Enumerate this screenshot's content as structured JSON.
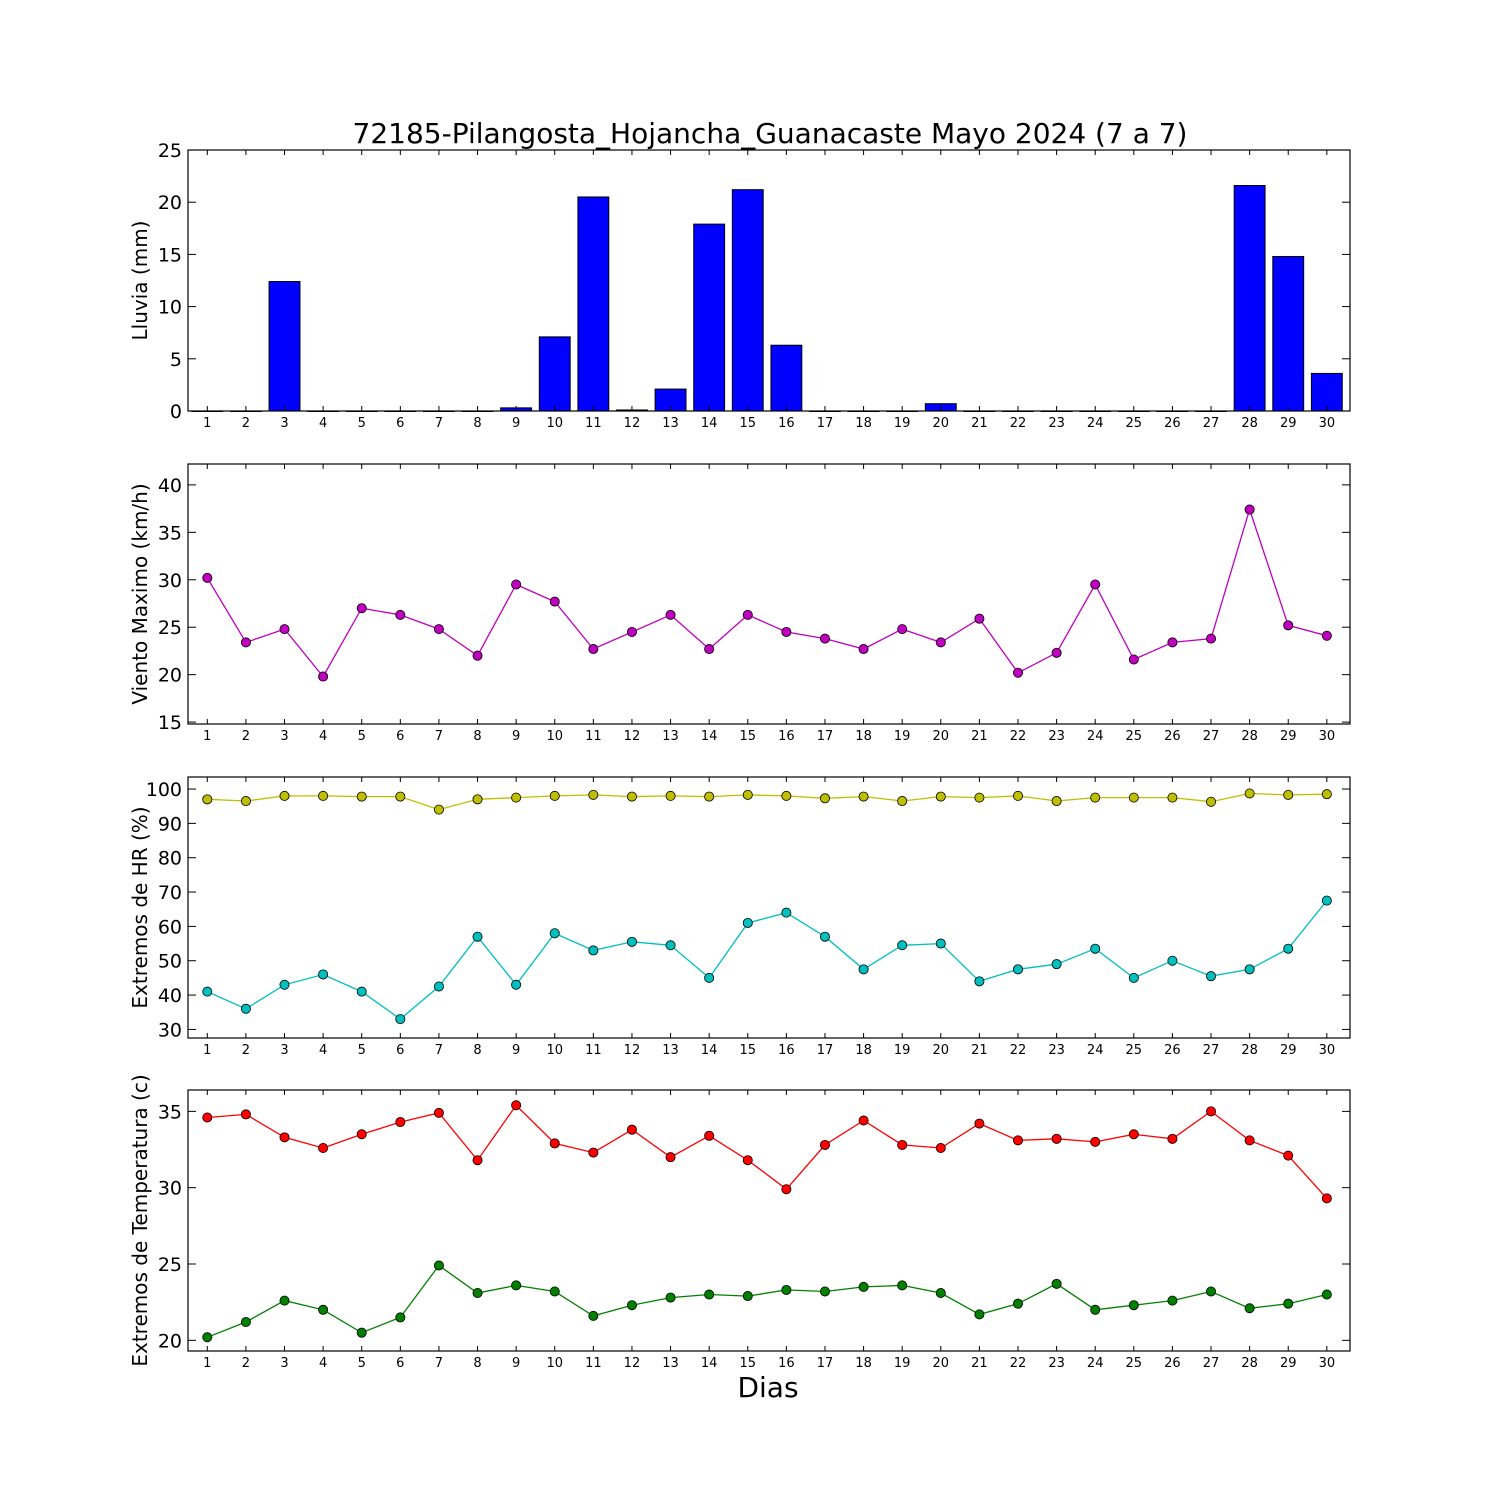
{
  "title": "72185-Pilangosta_Hojancha_Guanacaste Mayo 2024  (7 a 7)",
  "xlabel": "Dias",
  "chart_data": [
    {
      "type": "bar",
      "ylabel": "Lluvia (mm)",
      "ylim": [
        0,
        25
      ],
      "yticks": [
        0,
        5,
        10,
        15,
        20,
        25
      ],
      "x": [
        1,
        2,
        3,
        4,
        5,
        6,
        7,
        8,
        9,
        10,
        11,
        12,
        13,
        14,
        15,
        16,
        17,
        18,
        19,
        20,
        21,
        22,
        23,
        24,
        25,
        26,
        27,
        28,
        29,
        30
      ],
      "series": [
        {
          "color": "#0000ff",
          "values": [
            0,
            0,
            12.4,
            0,
            0,
            0,
            0,
            0,
            0.3,
            7.1,
            20.5,
            0.1,
            2.1,
            17.9,
            21.2,
            6.3,
            0,
            0,
            0,
            0.7,
            0,
            0,
            0,
            0,
            0,
            0,
            0,
            21.6,
            14.8,
            3.6
          ]
        }
      ]
    },
    {
      "type": "line",
      "ylabel": "Viento Maximo (km/h)",
      "ylim": [
        14.8,
        42.2
      ],
      "yticks": [
        15,
        20,
        25,
        30,
        35,
        40
      ],
      "x": [
        1,
        2,
        3,
        4,
        5,
        6,
        7,
        8,
        9,
        10,
        11,
        12,
        13,
        14,
        15,
        16,
        17,
        18,
        19,
        20,
        21,
        22,
        23,
        24,
        25,
        26,
        27,
        28,
        29,
        30
      ],
      "series": [
        {
          "color": "#bf00bf",
          "values": [
            30.2,
            23.4,
            24.8,
            19.8,
            27.0,
            26.3,
            24.8,
            22.0,
            29.5,
            27.7,
            22.7,
            24.5,
            26.3,
            22.7,
            26.3,
            24.5,
            23.8,
            22.7,
            24.8,
            23.4,
            25.9,
            20.2,
            22.3,
            29.5,
            21.6,
            23.4,
            23.8,
            37.4,
            25.2,
            24.1
          ]
        }
      ]
    },
    {
      "type": "line",
      "ylabel": "Extremos de HR (%)",
      "ylim": [
        27.5,
        103.5
      ],
      "yticks": [
        30,
        40,
        50,
        60,
        70,
        80,
        90,
        100
      ],
      "x": [
        1,
        2,
        3,
        4,
        5,
        6,
        7,
        8,
        9,
        10,
        11,
        12,
        13,
        14,
        15,
        16,
        17,
        18,
        19,
        20,
        21,
        22,
        23,
        24,
        25,
        26,
        27,
        28,
        29,
        30
      ],
      "series": [
        {
          "color": "#bfbf00",
          "values": [
            97,
            96.5,
            98,
            98,
            97.8,
            97.8,
            94,
            97,
            97.5,
            98,
            98.3,
            97.8,
            98,
            97.8,
            98.3,
            98,
            97.3,
            97.8,
            96.5,
            97.8,
            97.5,
            98,
            96.5,
            97.5,
            97.5,
            97.5,
            96.3,
            98.7,
            98.3,
            98.5
          ]
        },
        {
          "color": "#00bfbf",
          "values": [
            41,
            36,
            43,
            46,
            41,
            33,
            42.5,
            57,
            43,
            58,
            53,
            55.5,
            54.5,
            45,
            61,
            64,
            57,
            47.5,
            54.5,
            55,
            44,
            47.5,
            49,
            53.5,
            45,
            50,
            45.5,
            47.5,
            53.5,
            67.5
          ]
        }
      ]
    },
    {
      "type": "line",
      "ylabel": "Extremos de Temperatura (c)",
      "ylim": [
        19.3,
        36.4
      ],
      "yticks": [
        20,
        25,
        30,
        35
      ],
      "x": [
        1,
        2,
        3,
        4,
        5,
        6,
        7,
        8,
        9,
        10,
        11,
        12,
        13,
        14,
        15,
        16,
        17,
        18,
        19,
        20,
        21,
        22,
        23,
        24,
        25,
        26,
        27,
        28,
        29,
        30
      ],
      "series": [
        {
          "color": "#ff0000",
          "values": [
            34.6,
            34.8,
            33.3,
            32.6,
            33.5,
            34.3,
            34.9,
            31.8,
            35.4,
            32.9,
            32.3,
            33.8,
            32.0,
            33.4,
            31.8,
            29.9,
            32.8,
            34.4,
            32.8,
            32.6,
            34.2,
            33.1,
            33.2,
            33.0,
            33.5,
            33.2,
            35.0,
            33.1,
            32.1,
            29.3
          ]
        },
        {
          "color": "#008000",
          "values": [
            20.2,
            21.2,
            22.6,
            22.0,
            20.5,
            21.5,
            24.9,
            23.1,
            23.6,
            23.2,
            21.6,
            22.3,
            22.8,
            23.0,
            22.9,
            23.3,
            23.2,
            23.5,
            23.6,
            23.1,
            21.7,
            22.4,
            23.7,
            22.0,
            22.3,
            22.6,
            23.2,
            22.1,
            22.4,
            23.0
          ]
        }
      ]
    }
  ]
}
